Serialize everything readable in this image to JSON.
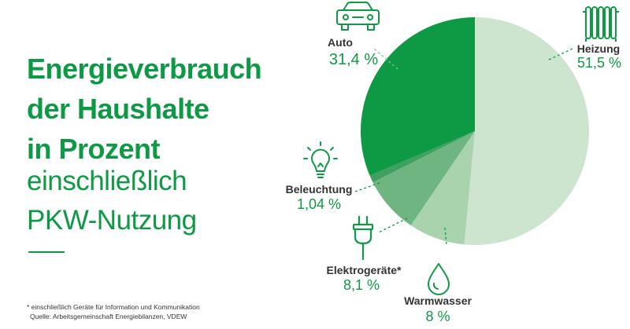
{
  "header": {
    "title_lines": [
      "Energieverbrauch",
      "der Haushalte",
      "in Prozent"
    ],
    "subtitle_lines": [
      "einschließlich",
      "PKW-Nutzung"
    ]
  },
  "footnote": {
    "note": "* einschließlich Geräte für Information und Kommunikation",
    "source": "Quelle: Arbeitsgemeinschaft Energiebilanzen, VDEW"
  },
  "colors": {
    "accent": "#0e9a45",
    "label_text": "#333333"
  },
  "chart_data": {
    "type": "pie",
    "title": "Energieverbrauch der Haushalte in Prozent einschließlich PKW-Nutzung",
    "start": "12 o'clock",
    "direction": "clockwise",
    "slices": [
      {
        "label": "Heizung",
        "value": 51.5,
        "value_label": "51,5 %",
        "color": "#cde5cf",
        "icon": "radiator-icon"
      },
      {
        "label": "Warmwasser",
        "value": 8,
        "value_label": "8 %",
        "color": "#a8d3ad",
        "icon": "water-drop-icon"
      },
      {
        "label": "Elektrogeräte*",
        "value": 8.1,
        "value_label": "8,1 %",
        "color": "#6fb582",
        "icon": "plug-icon"
      },
      {
        "label": "Beleuchtung",
        "value": 1.04,
        "value_label": "1,04 %",
        "color": "#3fa062",
        "icon": "light-bulb-icon"
      },
      {
        "label": "Auto",
        "value": 31.4,
        "value_label": "31,4 %",
        "color": "#0e9a45",
        "icon": "car-icon"
      }
    ]
  }
}
